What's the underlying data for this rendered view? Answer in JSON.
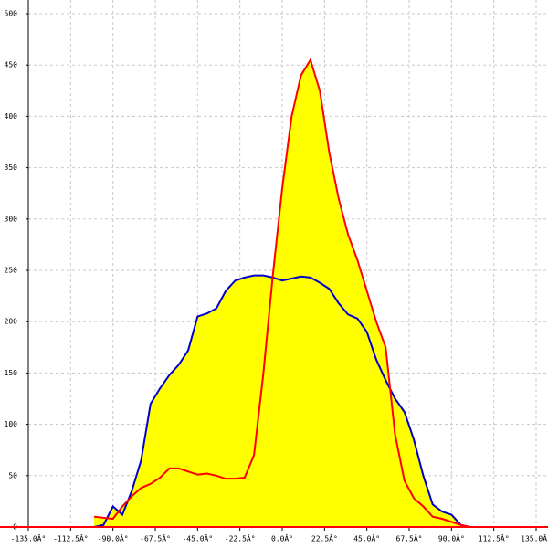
{
  "chart_data": {
    "type": "area-line",
    "x": [
      -100,
      -95,
      -90,
      -85,
      -80,
      -75,
      -70,
      -65,
      -60,
      -55,
      -50,
      -45,
      -40,
      -35,
      -30,
      -25,
      -20,
      -15,
      -10,
      -5,
      0,
      5,
      10,
      15,
      20,
      25,
      30,
      35,
      40,
      45,
      50,
      55,
      60,
      65,
      70,
      75,
      80,
      85,
      90,
      95,
      100
    ],
    "series": [
      {
        "color": "#0000cc",
        "values": [
          0,
          2,
          20,
          12,
          35,
          65,
          120,
          135,
          148,
          158,
          172,
          205,
          208,
          213,
          230,
          240,
          243,
          245,
          245,
          243,
          240,
          242,
          244,
          243,
          238,
          232,
          218,
          207,
          203,
          190,
          163,
          143,
          125,
          112,
          85,
          50,
          22,
          15,
          12,
          2,
          0
        ]
      },
      {
        "color": "#ff0000",
        "values": [
          10,
          9,
          8,
          20,
          30,
          38,
          42,
          48,
          57,
          57,
          54,
          51,
          52,
          50,
          47,
          47,
          48,
          70,
          150,
          245,
          330,
          400,
          440,
          455,
          425,
          365,
          320,
          285,
          260,
          230,
          200,
          175,
          90,
          45,
          28,
          20,
          10,
          8,
          5,
          2,
          0
        ]
      }
    ],
    "fill_color": "#ffff00",
    "xlim": [
      -135,
      135
    ],
    "xticks": [
      {
        "value": -135,
        "label": "-135.0Â°"
      },
      {
        "value": -112.5,
        "label": "-112.5Â°"
      },
      {
        "value": -90,
        "label": "-90.0Â°"
      },
      {
        "value": -67.5,
        "label": "-67.5Â°"
      },
      {
        "value": -45,
        "label": "-45.0Â°"
      },
      {
        "value": -22.5,
        "label": "-22.5Â°"
      },
      {
        "value": 0,
        "label": "0.0Â°"
      },
      {
        "value": 22.5,
        "label": "22.5Â°"
      },
      {
        "value": 45,
        "label": "45.0Â°"
      },
      {
        "value": 67.5,
        "label": "67.5Â°"
      },
      {
        "value": 90,
        "label": "90.0Â°"
      },
      {
        "value": 112.5,
        "label": "112.5Â°"
      },
      {
        "value": 135,
        "label": "135.0Â°"
      }
    ],
    "ylim": [
      0,
      500
    ],
    "yticks": [
      0,
      50,
      100,
      150,
      200,
      250,
      300,
      350,
      400,
      450,
      500
    ],
    "grid": true
  }
}
